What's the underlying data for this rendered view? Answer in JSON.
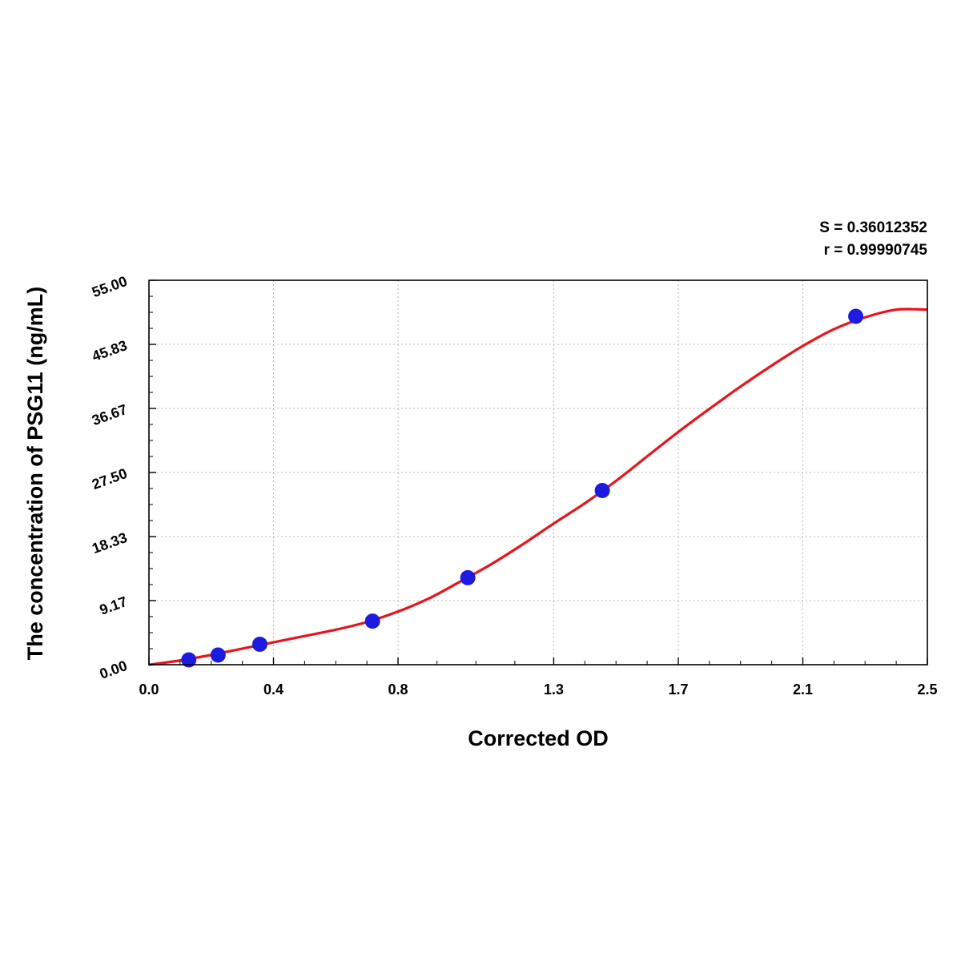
{
  "stats": {
    "s_text": "S = 0.36012352",
    "r_text": "r = 0.99990745"
  },
  "colors": {
    "curve": "#e8141c",
    "points": "#1d1be0",
    "grid": "#b8b8b8",
    "axis": "#000000"
  },
  "chart_data": {
    "type": "scatter",
    "title": "",
    "xlabel": "Corrected OD",
    "ylabel": "The concentration of PSG11 (ng/mL)",
    "xlim": [
      0.0,
      2.5
    ],
    "ylim": [
      0.0,
      55.0
    ],
    "x_ticks": [
      0.0,
      0.4,
      0.8,
      1.3,
      1.7,
      2.1,
      2.5
    ],
    "x_tick_labels": [
      "0.0",
      "0.4",
      "0.8",
      "1.3",
      "1.7",
      "2.1",
      "2.5"
    ],
    "y_ticks": [
      0.0,
      9.17,
      18.33,
      27.5,
      36.67,
      45.83,
      55.0
    ],
    "y_tick_labels": [
      "0.00",
      "9.17",
      "18.33",
      "27.50",
      "36.67",
      "45.83",
      "55.00"
    ],
    "grid": true,
    "series": [
      {
        "type": "scatter",
        "x": [
          0.128,
          0.222,
          0.356,
          0.718,
          1.024,
          1.456,
          2.27
        ],
        "y": [
          0.69,
          1.38,
          2.92,
          6.23,
          12.45,
          24.92,
          49.84
        ]
      },
      {
        "type": "line",
        "x": [
          0.0,
          0.1,
          0.2,
          0.3,
          0.4,
          0.5,
          0.6,
          0.7,
          0.8,
          0.9,
          1.0,
          1.1,
          1.2,
          1.3,
          1.4,
          1.5,
          1.6,
          1.7,
          1.8,
          1.9,
          2.0,
          2.1,
          2.2,
          2.3,
          2.4,
          2.5
        ],
        "y": [
          0.0,
          0.6,
          1.4,
          2.3,
          3.2,
          4.1,
          5.0,
          6.1,
          7.6,
          9.5,
          11.9,
          14.4,
          17.2,
          20.2,
          23.1,
          26.3,
          29.8,
          33.3,
          36.6,
          39.8,
          42.8,
          45.6,
          48.0,
          49.7,
          50.8,
          50.8
        ]
      }
    ]
  }
}
